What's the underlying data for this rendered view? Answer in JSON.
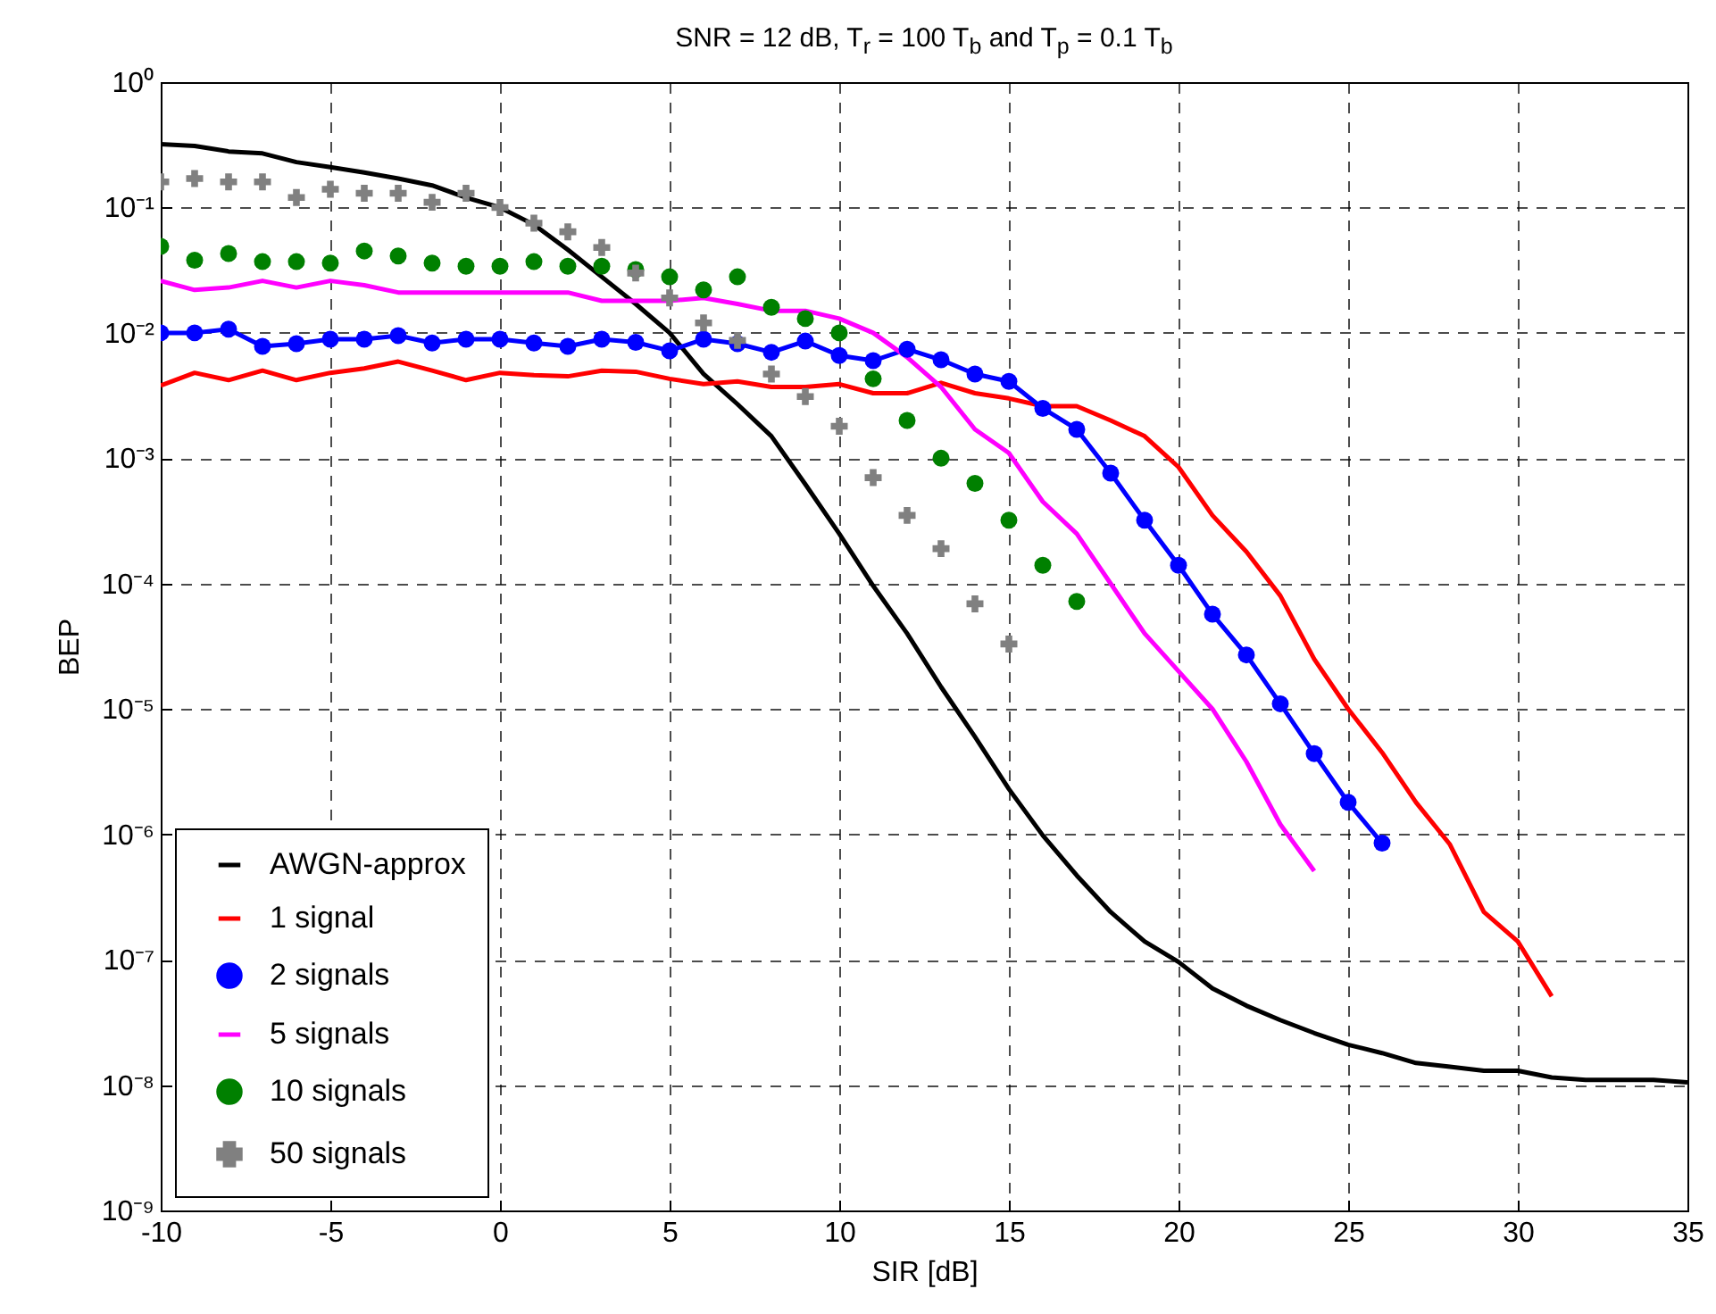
{
  "chart_data": {
    "type": "line",
    "title": "SNR = 12 dB, T$_{r}$ = 100 T$_{b}$ and T$_{p}$ = 0.1 T$_{b}$",
    "xlabel": "SIR [dB]",
    "ylabel": "BEP",
    "log": "y",
    "grid": true,
    "legend": "bottom left",
    "xlim": [
      -10,
      35
    ],
    "xticks": [
      -10,
      -5,
      0,
      5,
      10,
      15,
      20,
      25,
      30,
      35
    ],
    "ylim": [
      1e-09,
      1
    ],
    "yticks": [
      {
        "value": 1e-09,
        "label": "10⁻⁹"
      },
      {
        "value": 1e-08,
        "label": "10⁻⁸"
      },
      {
        "value": 1e-07,
        "label": "10⁻⁷"
      },
      {
        "value": 1e-06,
        "label": "10⁻⁶"
      },
      {
        "value": 1e-05,
        "label": "10⁻⁵"
      },
      {
        "value": 0.0001,
        "label": "10⁻⁴"
      },
      {
        "value": 0.001,
        "label": "10⁻³"
      },
      {
        "value": 0.01,
        "label": "10⁻²"
      },
      {
        "value": 0.1,
        "label": "10⁻¹"
      },
      {
        "value": 1,
        "label": "10⁰"
      }
    ],
    "series": [
      {
        "name": "AWGN-approx",
        "color": "#000000",
        "x": [
          -10,
          -9,
          -8,
          -7,
          -6,
          -5,
          -4,
          -3,
          -2,
          -1,
          0,
          1,
          2,
          3,
          4,
          5,
          6,
          7,
          8,
          9,
          10,
          11,
          12,
          13,
          14,
          15,
          16,
          17,
          18,
          19,
          20,
          21,
          22,
          23,
          24,
          25,
          26,
          27,
          28,
          29,
          30,
          31,
          32,
          33,
          34,
          35
        ],
        "values": [
          0.32,
          0.31,
          0.28,
          0.27,
          0.23,
          0.21,
          0.19,
          0.17,
          0.15,
          0.12,
          0.1,
          0.073,
          0.046,
          0.028,
          0.017,
          0.01,
          0.0047,
          0.0027,
          0.0015,
          0.00062,
          0.00025,
          9.6e-05,
          4e-05,
          1.5e-05,
          6e-06,
          2.3e-06,
          9.8e-07,
          4.7e-07,
          2.4e-07,
          1.4e-07,
          9.6e-08,
          5.9e-08,
          4.3e-08,
          3.3e-08,
          2.6e-08,
          2.1e-08,
          1.8e-08,
          1.5e-08,
          1.4e-08,
          1.3e-08,
          1.3e-08,
          1.15e-08,
          1.1e-08,
          1.1e-08,
          1.1e-08,
          1.05e-08
        ]
      },
      {
        "name": "1 signal",
        "color": "#ff0000",
        "x": [
          -10,
          -9,
          -8,
          -7,
          -6,
          -5,
          -4,
          -3,
          -2,
          -1,
          0,
          1,
          2,
          3,
          4,
          5,
          6,
          7,
          8,
          9,
          10,
          11,
          12,
          13,
          14,
          15,
          16,
          17,
          18,
          19,
          20,
          21,
          22,
          23,
          24,
          25,
          26,
          27,
          28,
          29,
          30,
          31
        ],
        "values": [
          0.0038,
          0.0048,
          0.0042,
          0.005,
          0.0042,
          0.0048,
          0.0052,
          0.0059,
          0.005,
          0.0042,
          0.0048,
          0.0046,
          0.0045,
          0.005,
          0.0049,
          0.0043,
          0.0039,
          0.0041,
          0.0037,
          0.0037,
          0.0039,
          0.0033,
          0.0033,
          0.004,
          0.0033,
          0.003,
          0.0026,
          0.0026,
          0.002,
          0.0015,
          0.00085,
          0.00035,
          0.00018,
          8e-05,
          2.5e-05,
          1e-05,
          4.5e-06,
          1.8e-06,
          8.3e-07,
          2.4e-07,
          1.4e-07,
          5.1e-08
        ]
      },
      {
        "name": "2 signals",
        "color": "#0000ff",
        "marker": "circle",
        "x": [
          -10,
          -9,
          -8,
          -7,
          -6,
          -5,
          -4,
          -3,
          -2,
          -1,
          0,
          1,
          2,
          3,
          4,
          5,
          6,
          7,
          8,
          9,
          10,
          11,
          12,
          13,
          14,
          15,
          16,
          17,
          18,
          19,
          20,
          21,
          22,
          23,
          24,
          25,
          26
        ],
        "values": [
          0.01,
          0.01,
          0.0107,
          0.0078,
          0.0082,
          0.0089,
          0.0089,
          0.0095,
          0.0083,
          0.0089,
          0.0089,
          0.0083,
          0.0078,
          0.0089,
          0.0084,
          0.0072,
          0.0089,
          0.0082,
          0.007,
          0.0086,
          0.0066,
          0.006,
          0.0074,
          0.0061,
          0.0047,
          0.0041,
          0.0025,
          0.0017,
          0.00076,
          0.00032,
          0.00014,
          5.7e-05,
          2.7e-05,
          1.1e-05,
          4.4e-06,
          1.8e-06,
          8.5e-07
        ]
      },
      {
        "name": "5 signals",
        "color": "#ff00ff",
        "x": [
          -10,
          -9,
          -8,
          -7,
          -6,
          -5,
          -4,
          -3,
          -2,
          -1,
          0,
          1,
          2,
          3,
          4,
          5,
          6,
          7,
          8,
          9,
          10,
          11,
          12,
          13,
          14,
          15,
          16,
          17,
          18,
          19,
          20,
          21,
          22,
          23,
          24
        ],
        "values": [
          0.026,
          0.022,
          0.023,
          0.026,
          0.023,
          0.026,
          0.024,
          0.021,
          0.021,
          0.021,
          0.021,
          0.021,
          0.021,
          0.018,
          0.018,
          0.018,
          0.019,
          0.017,
          0.015,
          0.015,
          0.013,
          0.01,
          0.0064,
          0.0037,
          0.0017,
          0.0011,
          0.00045,
          0.00025,
          0.0001,
          4e-05,
          2e-05,
          1e-05,
          3.8e-06,
          1.2e-06,
          5.1e-07
        ]
      },
      {
        "name": "10 signals",
        "color": "#008000",
        "type": "scatter",
        "marker": "circle",
        "x": [
          -10,
          -9,
          -8,
          -7,
          -6,
          -5,
          -4,
          -3,
          -2,
          -1,
          0,
          1,
          2,
          3,
          4,
          5,
          6,
          7,
          8,
          9,
          10,
          11,
          12,
          13,
          14,
          15,
          16,
          17
        ],
        "values": [
          0.049,
          0.038,
          0.043,
          0.037,
          0.037,
          0.036,
          0.045,
          0.041,
          0.036,
          0.034,
          0.034,
          0.037,
          0.034,
          0.034,
          0.032,
          0.028,
          0.022,
          0.028,
          0.016,
          0.013,
          0.01,
          0.0043,
          0.002,
          0.001,
          0.00063,
          0.00032,
          0.00014,
          7.2e-05
        ]
      },
      {
        "name": "50 signals",
        "color": "#808080",
        "type": "scatter",
        "marker": "cross",
        "x": [
          -10,
          -9,
          -8,
          -7,
          -6,
          -5,
          -4,
          -3,
          -2,
          -1,
          0,
          1,
          2,
          3,
          4,
          5,
          6,
          7,
          8,
          9,
          10,
          11,
          12,
          13,
          14,
          15
        ],
        "values": [
          0.16,
          0.17,
          0.16,
          0.16,
          0.12,
          0.14,
          0.13,
          0.13,
          0.11,
          0.13,
          0.1,
          0.075,
          0.064,
          0.048,
          0.03,
          0.019,
          0.012,
          0.0087,
          0.0047,
          0.0031,
          0.0018,
          0.0007,
          0.00035,
          0.00019,
          6.9e-05,
          3.3e-05
        ]
      }
    ]
  }
}
